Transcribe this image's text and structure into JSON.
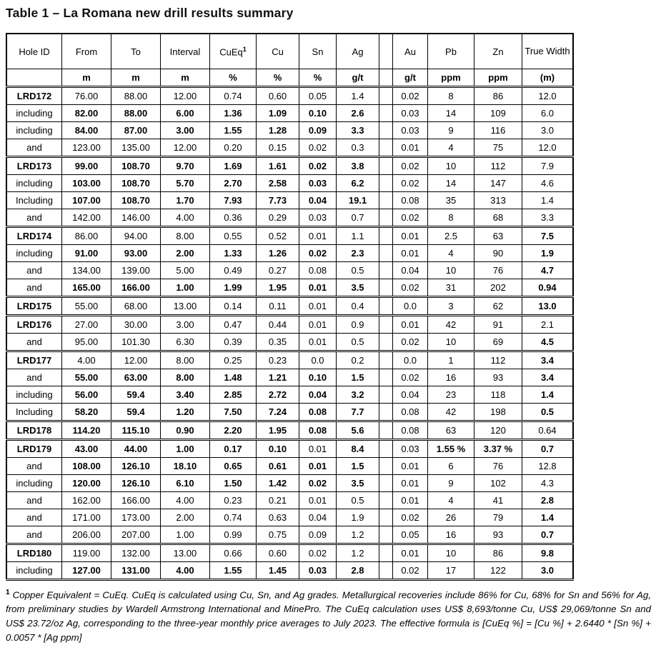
{
  "title": "Table 1 – La Romana new drill results summary",
  "table": {
    "columns": [
      {
        "label": "Hole ID",
        "unit": ""
      },
      {
        "label": "From",
        "unit": "m"
      },
      {
        "label": "To",
        "unit": "m"
      },
      {
        "label": "Interval",
        "unit": "m"
      },
      {
        "label": "CuEq",
        "sup": "1",
        "unit": "%"
      },
      {
        "label": "Cu",
        "unit": "%"
      },
      {
        "label": "Sn",
        "unit": "%"
      },
      {
        "label": "Ag",
        "unit": "g/t"
      },
      {
        "label": "",
        "unit": "",
        "gap": true
      },
      {
        "label": "Au",
        "unit": "g/t"
      },
      {
        "label": "Pb",
        "unit": "ppm"
      },
      {
        "label": "Zn",
        "unit": "ppm"
      },
      {
        "label": "True Width",
        "unit": "(m)"
      }
    ],
    "rows": [
      {
        "label": "LRD172",
        "label_bold": true,
        "sep": true,
        "cells": [
          "76.00",
          "88.00",
          "12.00",
          "0.74",
          "0.60",
          "0.05",
          "1.4",
          "0.02",
          "8",
          "86",
          "12.0"
        ],
        "bold": [
          0,
          0,
          0,
          0,
          0,
          0,
          0,
          0,
          0,
          0,
          0
        ]
      },
      {
        "label": "including",
        "label_bold": false,
        "sep": false,
        "cells": [
          "82.00",
          "88.00",
          "6.00",
          "1.36",
          "1.09",
          "0.10",
          "2.6",
          "0.03",
          "14",
          "109",
          "6.0"
        ],
        "bold": [
          1,
          1,
          1,
          1,
          1,
          1,
          1,
          0,
          0,
          0,
          0
        ]
      },
      {
        "label": "including",
        "label_bold": false,
        "sep": false,
        "cells": [
          "84.00",
          "87.00",
          "3.00",
          "1.55",
          "1.28",
          "0.09",
          "3.3",
          "0.03",
          "9",
          "116",
          "3.0"
        ],
        "bold": [
          1,
          1,
          1,
          1,
          1,
          1,
          1,
          0,
          0,
          0,
          0
        ]
      },
      {
        "label": "and",
        "label_bold": false,
        "sep": false,
        "cells": [
          "123.00",
          "135.00",
          "12.00",
          "0.20",
          "0.15",
          "0.02",
          "0.3",
          "0.01",
          "4",
          "75",
          "12.0"
        ],
        "bold": [
          0,
          0,
          0,
          0,
          0,
          0,
          0,
          0,
          0,
          0,
          0
        ]
      },
      {
        "label": "LRD173",
        "label_bold": true,
        "sep": true,
        "cells": [
          "99.00",
          "108.70",
          "9.70",
          "1.69",
          "1.61",
          "0.02",
          "3.8",
          "0.02",
          "10",
          "112",
          "7.9"
        ],
        "bold": [
          1,
          1,
          1,
          1,
          1,
          1,
          1,
          0,
          0,
          0,
          0
        ]
      },
      {
        "label": "including",
        "label_bold": false,
        "sep": false,
        "cells": [
          "103.00",
          "108.70",
          "5.70",
          "2.70",
          "2.58",
          "0.03",
          "6.2",
          "0.02",
          "14",
          "147",
          "4.6"
        ],
        "bold": [
          1,
          1,
          1,
          1,
          1,
          1,
          1,
          0,
          0,
          0,
          0
        ]
      },
      {
        "label": "Including",
        "label_bold": false,
        "sep": false,
        "cells": [
          "107.00",
          "108.70",
          "1.70",
          "7.93",
          "7.73",
          "0.04",
          "19.1",
          "0.08",
          "35",
          "313",
          "1.4"
        ],
        "bold": [
          1,
          1,
          1,
          1,
          1,
          1,
          1,
          0,
          0,
          0,
          0
        ]
      },
      {
        "label": "and",
        "label_bold": false,
        "sep": false,
        "cells": [
          "142.00",
          "146.00",
          "4.00",
          "0.36",
          "0.29",
          "0.03",
          "0.7",
          "0.02",
          "8",
          "68",
          "3.3"
        ],
        "bold": [
          0,
          0,
          0,
          0,
          0,
          0,
          0,
          0,
          0,
          0,
          0
        ]
      },
      {
        "label": "LRD174",
        "label_bold": true,
        "sep": true,
        "cells": [
          "86.00",
          "94.00",
          "8.00",
          "0.55",
          "0.52",
          "0.01",
          "1.1",
          "0.01",
          "2.5",
          "63",
          "7.5"
        ],
        "bold": [
          0,
          0,
          0,
          0,
          0,
          0,
          0,
          0,
          0,
          0,
          1
        ]
      },
      {
        "label": "including",
        "label_bold": false,
        "sep": false,
        "cells": [
          "91.00",
          "93.00",
          "2.00",
          "1.33",
          "1.26",
          "0.02",
          "2.3",
          "0.01",
          "4",
          "90",
          "1.9"
        ],
        "bold": [
          1,
          1,
          1,
          1,
          1,
          1,
          1,
          0,
          0,
          0,
          1
        ]
      },
      {
        "label": "and",
        "label_bold": false,
        "sep": false,
        "cells": [
          "134.00",
          "139.00",
          "5.00",
          "0.49",
          "0.27",
          "0.08",
          "0.5",
          "0.04",
          "10",
          "76",
          "4.7"
        ],
        "bold": [
          0,
          0,
          0,
          0,
          0,
          0,
          0,
          0,
          0,
          0,
          1
        ]
      },
      {
        "label": "and",
        "label_bold": false,
        "sep": false,
        "cells": [
          "165.00",
          "166.00",
          "1.00",
          "1.99",
          "1.95",
          "0.01",
          "3.5",
          "0.02",
          "31",
          "202",
          "0.94"
        ],
        "bold": [
          1,
          1,
          1,
          1,
          1,
          1,
          1,
          0,
          0,
          0,
          1
        ]
      },
      {
        "label": "LRD175",
        "label_bold": true,
        "sep": true,
        "cells": [
          "55.00",
          "68.00",
          "13.00",
          "0.14",
          "0.11",
          "0.01",
          "0.4",
          "0.0",
          "3",
          "62",
          "13.0"
        ],
        "bold": [
          0,
          0,
          0,
          0,
          0,
          0,
          0,
          0,
          0,
          0,
          1
        ]
      },
      {
        "label": "LRD176",
        "label_bold": true,
        "sep": true,
        "cells": [
          "27.00",
          "30.00",
          "3.00",
          "0.47",
          "0.44",
          "0.01",
          "0.9",
          "0.01",
          "42",
          "91",
          "2.1"
        ],
        "bold": [
          0,
          0,
          0,
          0,
          0,
          0,
          0,
          0,
          0,
          0,
          0
        ]
      },
      {
        "label": "and",
        "label_bold": false,
        "sep": false,
        "cells": [
          "95.00",
          "101.30",
          "6.30",
          "0.39",
          "0.35",
          "0.01",
          "0.5",
          "0.02",
          "10",
          "69",
          "4.5"
        ],
        "bold": [
          0,
          0,
          0,
          0,
          0,
          0,
          0,
          0,
          0,
          0,
          1
        ]
      },
      {
        "label": "LRD177",
        "label_bold": true,
        "sep": true,
        "cells": [
          "4.00",
          "12.00",
          "8.00",
          "0.25",
          "0.23",
          "0.0",
          "0.2",
          "0.0",
          "1",
          "112",
          "3.4"
        ],
        "bold": [
          0,
          0,
          0,
          0,
          0,
          0,
          0,
          0,
          0,
          0,
          1
        ]
      },
      {
        "label": "and",
        "label_bold": false,
        "sep": false,
        "cells": [
          "55.00",
          "63.00",
          "8.00",
          "1.48",
          "1.21",
          "0.10",
          "1.5",
          "0.02",
          "16",
          "93",
          "3.4"
        ],
        "bold": [
          1,
          1,
          1,
          1,
          1,
          1,
          1,
          0,
          0,
          0,
          1
        ]
      },
      {
        "label": "including",
        "label_bold": false,
        "sep": false,
        "cells": [
          "56.00",
          "59.4",
          "3.40",
          "2.85",
          "2.72",
          "0.04",
          "3.2",
          "0.04",
          "23",
          "118",
          "1.4"
        ],
        "bold": [
          1,
          1,
          1,
          1,
          1,
          1,
          1,
          0,
          0,
          0,
          1
        ]
      },
      {
        "label": "Including",
        "label_bold": false,
        "sep": false,
        "cells": [
          "58.20",
          "59.4",
          "1.20",
          "7.50",
          "7.24",
          "0.08",
          "7.7",
          "0.08",
          "42",
          "198",
          "0.5"
        ],
        "bold": [
          1,
          1,
          1,
          1,
          1,
          1,
          1,
          0,
          0,
          0,
          1
        ]
      },
      {
        "label": "LRD178",
        "label_bold": true,
        "sep": true,
        "cells": [
          "114.20",
          "115.10",
          "0.90",
          "2.20",
          "1.95",
          "0.08",
          "5.6",
          "0.08",
          "63",
          "120",
          "0.64"
        ],
        "bold": [
          1,
          1,
          1,
          1,
          1,
          1,
          1,
          0,
          0,
          0,
          0
        ]
      },
      {
        "label": "LRD179",
        "label_bold": true,
        "sep": true,
        "cells": [
          "43.00",
          "44.00",
          "1.00",
          "0.17",
          "0.10",
          "0.01",
          "8.4",
          "0.03",
          "1.55 %",
          "3.37 %",
          "0.7"
        ],
        "bold": [
          1,
          1,
          1,
          1,
          1,
          0,
          1,
          0,
          1,
          1,
          1
        ]
      },
      {
        "label": "and",
        "label_bold": false,
        "sep": false,
        "cells": [
          "108.00",
          "126.10",
          "18.10",
          "0.65",
          "0.61",
          "0.01",
          "1.5",
          "0.01",
          "6",
          "76",
          "12.8"
        ],
        "bold": [
          1,
          1,
          1,
          1,
          1,
          1,
          1,
          0,
          0,
          0,
          0
        ]
      },
      {
        "label": "including",
        "label_bold": false,
        "sep": false,
        "cells": [
          "120.00",
          "126.10",
          "6.10",
          "1.50",
          "1.42",
          "0.02",
          "3.5",
          "0.01",
          "9",
          "102",
          "4.3"
        ],
        "bold": [
          1,
          1,
          1,
          1,
          1,
          1,
          1,
          0,
          0,
          0,
          0
        ]
      },
      {
        "label": "and",
        "label_bold": false,
        "sep": false,
        "cells": [
          "162.00",
          "166.00",
          "4.00",
          "0.23",
          "0.21",
          "0.01",
          "0.5",
          "0.01",
          "4",
          "41",
          "2.8"
        ],
        "bold": [
          0,
          0,
          0,
          0,
          0,
          0,
          0,
          0,
          0,
          0,
          1
        ]
      },
      {
        "label": "and",
        "label_bold": false,
        "sep": false,
        "cells": [
          "171.00",
          "173.00",
          "2.00",
          "0.74",
          "0.63",
          "0.04",
          "1.9",
          "0.02",
          "26",
          "79",
          "1.4"
        ],
        "bold": [
          0,
          0,
          0,
          0,
          0,
          0,
          0,
          0,
          0,
          0,
          1
        ]
      },
      {
        "label": "and",
        "label_bold": false,
        "sep": false,
        "cells": [
          "206.00",
          "207.00",
          "1.00",
          "0.99",
          "0.75",
          "0.09",
          "1.2",
          "0.05",
          "16",
          "93",
          "0.7"
        ],
        "bold": [
          0,
          0,
          0,
          0,
          0,
          0,
          0,
          0,
          0,
          0,
          1
        ]
      },
      {
        "label": "LRD180",
        "label_bold": true,
        "sep": true,
        "cells": [
          "119.00",
          "132.00",
          "13.00",
          "0.66",
          "0.60",
          "0.02",
          "1.2",
          "0.01",
          "10",
          "86",
          "9.8"
        ],
        "bold": [
          0,
          0,
          0,
          0,
          0,
          0,
          0,
          0,
          0,
          0,
          1
        ]
      },
      {
        "label": "including",
        "label_bold": false,
        "sep": false,
        "cells": [
          "127.00",
          "131.00",
          "4.00",
          "1.55",
          "1.45",
          "0.03",
          "2.8",
          "0.02",
          "17",
          "122",
          "3.0"
        ],
        "bold": [
          1,
          1,
          1,
          1,
          1,
          1,
          1,
          0,
          0,
          0,
          1
        ]
      }
    ]
  },
  "footnote": {
    "sup": "1",
    "text": " Copper Equivalent = CuEq. CuEq is calculated using Cu, Sn, and Ag grades. Metallurgical recoveries include 86% for Cu, 68% for Sn and 56% for Ag, from preliminary studies by Wardell Armstrong International and MinePro. The CuEq calculation uses US$ 8,693/tonne Cu, US$ 29,069/tonne Sn and US$ 23.72/oz Ag, corresponding to the three-year monthly price averages to July 2023. The effective formula is [CuEq %] = [Cu %] + 2.6440 * [Sn %] + 0.0057 * [Ag ppm]"
  }
}
